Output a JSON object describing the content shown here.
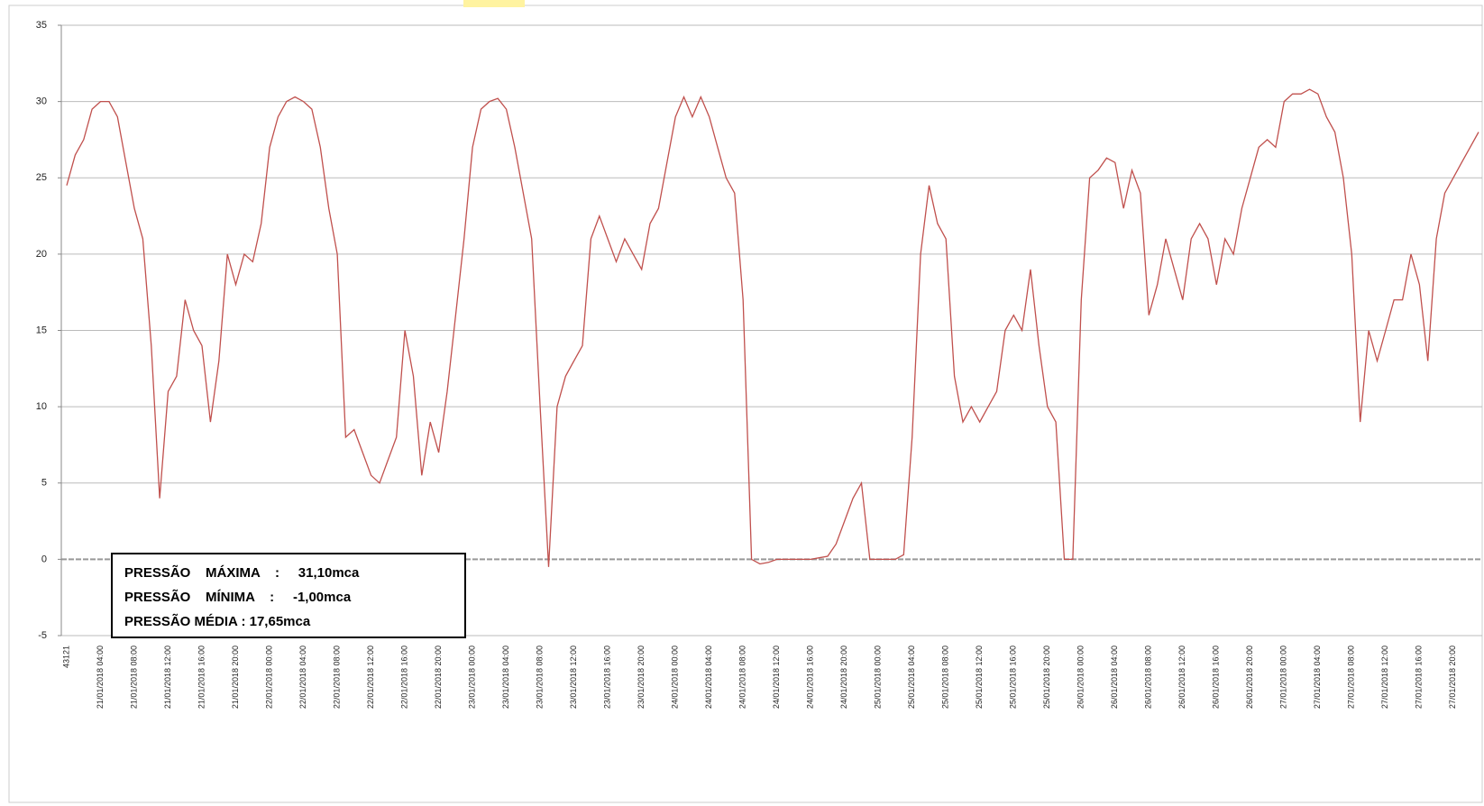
{
  "chart_data": {
    "type": "line",
    "categories": [
      "43121",
      null,
      null,
      null,
      "21/01/2018 04:00",
      null,
      null,
      null,
      "21/01/2018 08:00",
      null,
      null,
      null,
      "21/01/2018 12:00",
      null,
      null,
      null,
      "21/01/2018 16:00",
      null,
      null,
      null,
      "21/01/2018 20:00",
      null,
      null,
      null,
      "22/01/2018 00:00",
      null,
      null,
      null,
      "22/01/2018 04:00",
      null,
      null,
      null,
      "22/01/2018 08:00",
      null,
      null,
      null,
      "22/01/2018 12:00",
      null,
      null,
      null,
      "22/01/2018 16:00",
      null,
      null,
      null,
      "22/01/2018 20:00",
      null,
      null,
      null,
      "23/01/2018 00:00",
      null,
      null,
      null,
      "23/01/2018 04:00",
      null,
      null,
      null,
      "23/01/2018 08:00",
      null,
      null,
      null,
      "23/01/2018 12:00",
      null,
      null,
      null,
      "23/01/2018 16:00",
      null,
      null,
      null,
      "23/01/2018 20:00",
      null,
      null,
      null,
      "24/01/2018 00:00",
      null,
      null,
      null,
      "24/01/2018 04:00",
      null,
      null,
      null,
      "24/01/2018 08:00",
      null,
      null,
      null,
      "24/01/2018 12:00",
      null,
      null,
      null,
      "24/01/2018 16:00",
      null,
      null,
      null,
      "24/01/2018 20:00",
      null,
      null,
      null,
      "25/01/2018 00:00",
      null,
      null,
      null,
      "25/01/2018 04:00",
      null,
      null,
      null,
      "25/01/2018 08:00",
      null,
      null,
      null,
      "25/01/2018 12:00",
      null,
      null,
      null,
      "25/01/2018 16:00",
      null,
      null,
      null,
      "25/01/2018 20:00",
      null,
      null,
      null,
      "26/01/2018 00:00",
      null,
      null,
      null,
      "26/01/2018 04:00",
      null,
      null,
      null,
      "26/01/2018 08:00",
      null,
      null,
      null,
      "26/01/2018 12:00",
      null,
      null,
      null,
      "26/01/2018 16:00",
      null,
      null,
      null,
      "26/01/2018 20:00",
      null,
      null,
      null,
      "27/01/2018 00:00",
      null,
      null,
      null,
      "27/01/2018 04:00",
      null,
      null,
      null,
      "27/01/2018 08:00",
      null,
      null,
      null,
      "27/01/2018 12:00",
      null,
      null,
      null,
      "27/01/2018 16:00",
      null,
      null,
      null,
      "27/01/2018 20:00",
      null,
      null,
      null
    ],
    "series": [
      {
        "color": "#c0504d",
        "values": [
          24.5,
          26.5,
          27.5,
          29.5,
          30,
          30,
          29,
          26,
          23,
          21,
          14,
          4,
          11,
          12,
          17,
          15,
          14,
          9,
          13,
          20,
          18,
          20,
          19.5,
          22,
          27,
          29,
          30,
          30.3,
          30,
          29.5,
          27,
          23,
          20,
          8,
          8.5,
          7,
          5.5,
          5,
          6.5,
          8,
          15,
          12,
          5.5,
          9,
          7,
          11,
          16,
          21,
          27,
          29.5,
          30,
          30.2,
          29.5,
          27,
          24,
          21,
          10,
          -0.5,
          10,
          12,
          13,
          14,
          21,
          22.5,
          21,
          19.5,
          21,
          20,
          19,
          22,
          23,
          26,
          29,
          30.3,
          29,
          30.3,
          29,
          27,
          25,
          24,
          17,
          0,
          -0.3,
          -0.2,
          0,
          0,
          0,
          0,
          0,
          0.1,
          0.2,
          1,
          2.5,
          4,
          5,
          0,
          0,
          0,
          0,
          0.3,
          8,
          20,
          24.5,
          22,
          21,
          12,
          9,
          10,
          9,
          10,
          11,
          15,
          16,
          15,
          19,
          14,
          10,
          9,
          0,
          0,
          17,
          25,
          25.5,
          26.3,
          26,
          23,
          25.5,
          24,
          16,
          18,
          21,
          19,
          17,
          21,
          22,
          21,
          18,
          21,
          20,
          23,
          25,
          27,
          27.5,
          27,
          30,
          30.5,
          30.5,
          30.8,
          30.5,
          29,
          28,
          25,
          20,
          9,
          15,
          13,
          15,
          17,
          17,
          20,
          18,
          13,
          21,
          24,
          25,
          26,
          27,
          28
        ]
      }
    ],
    "ylim": [
      -5,
      35
    ],
    "yticks": [
      -5,
      0,
      5,
      10,
      15,
      20,
      25,
      30,
      35
    ],
    "grid": true,
    "annotations": [
      "PRESSÃO    MÁXIMA    :     31,10mca",
      "PRESSÃO    MÍNIMA    :     -1,00mca",
      "PRESSÃO MÉDIA : 17,65mca"
    ]
  }
}
